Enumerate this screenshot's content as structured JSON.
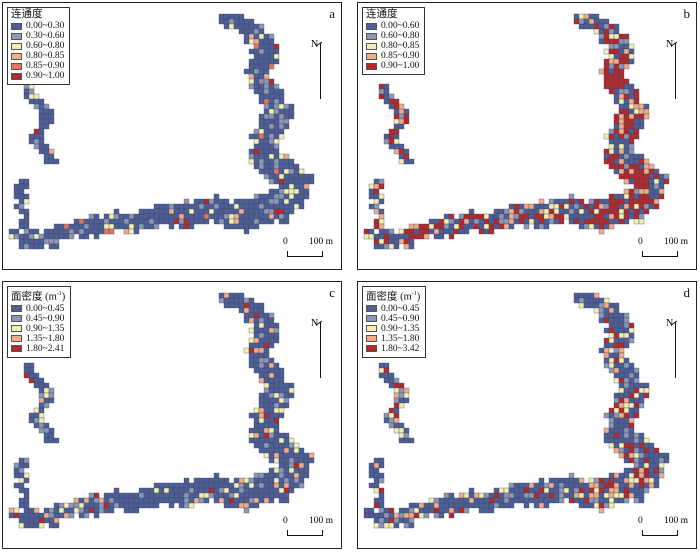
{
  "colors": {
    "class_1": "#4f5f94",
    "class_2": "#8f98b2",
    "class_3": "#f3efad",
    "class_4": "#f2ad86",
    "class_5": "#e57560",
    "class_6": "#b52a28"
  },
  "north_label": "N",
  "scale": {
    "zero": "0",
    "max": "100 m"
  },
  "panels": [
    {
      "letter": "a",
      "legend_title": "连通度",
      "legend_superscript": "",
      "legend_items": [
        "0.00~0.30",
        "0.30~0.60",
        "0.60~0.80",
        "0.80~0.85",
        "0.85~0.90",
        "0.90~1.00"
      ],
      "legend_colors": [
        "class_1",
        "class_2",
        "class_3",
        "class_4",
        "class_5",
        "class_6"
      ],
      "class_weights": [
        0.76,
        0.12,
        0.06,
        0.025,
        0.02,
        0.015
      ],
      "hotspot_strength": 0.15
    },
    {
      "letter": "b",
      "legend_title": "连通度",
      "legend_superscript": "",
      "legend_items": [
        "0.00~0.60",
        "0.60~0.80",
        "0.80~0.85",
        "0.85~0.90",
        "0.90~1.00"
      ],
      "legend_colors": [
        "class_1",
        "class_2",
        "class_3",
        "class_4",
        "class_6"
      ],
      "class_weights": [
        0.42,
        0.14,
        0.1,
        0.1,
        0.24
      ],
      "hotspot_strength": 0.8
    },
    {
      "letter": "c",
      "legend_title": "面密度 (m",
      "legend_superscript": "-1",
      "legend_items": [
        "0.00~0.45",
        "0.45~0.90",
        "0.90~1.35",
        "1.35~1.80",
        "1.80~2.41"
      ],
      "legend_colors": [
        "class_1",
        "class_2",
        "class_3",
        "class_4",
        "class_6"
      ],
      "class_weights": [
        0.74,
        0.1,
        0.08,
        0.05,
        0.03
      ],
      "hotspot_strength": 0.35
    },
    {
      "letter": "d",
      "legend_title": "面密度 (m",
      "legend_superscript": "-1",
      "legend_items": [
        "0.00~0.45",
        "0.45~0.90",
        "0.90~1.35",
        "1.35~1.80",
        "1.80~3.42"
      ],
      "legend_colors": [
        "class_1",
        "class_2",
        "class_3",
        "class_4",
        "class_6"
      ],
      "class_weights": [
        0.62,
        0.12,
        0.08,
        0.08,
        0.1
      ],
      "hotspot_strength": 0.6
    }
  ]
}
